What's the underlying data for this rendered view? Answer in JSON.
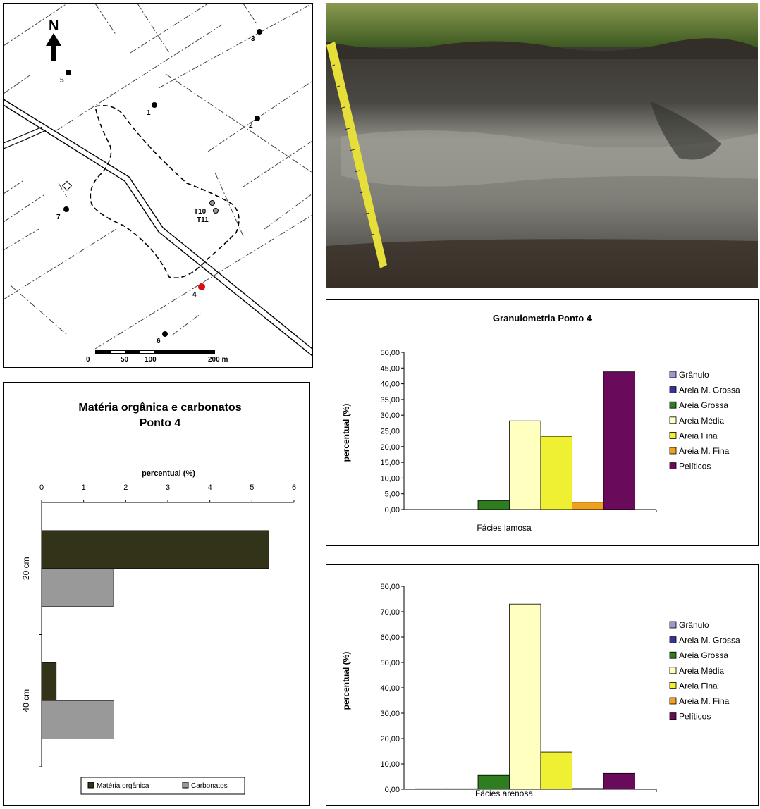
{
  "map": {
    "north_label": "N",
    "points": [
      "1",
      "2",
      "3",
      "4",
      "5",
      "6",
      "7"
    ],
    "trench_labels": [
      "T10",
      "T11"
    ],
    "scale_labels": [
      "0",
      "50",
      "100",
      "200 m"
    ]
  },
  "organic_chart": {
    "title_line1": "Matéria orgânica e carbonatos",
    "title_line2": "Ponto 4",
    "axis_label": "percentual (%)",
    "legend_organic": "Matéria orgânica",
    "legend_carbonate": "Carbonatos"
  },
  "gran1": {
    "title": "Granulometria Ponto 4",
    "ylabel": "percentual (%)",
    "category": "Fácies lamosa"
  },
  "gran2": {
    "ylabel": "percentual (%)",
    "category": "Fácies arenosa"
  },
  "colors": {
    "organic": "#333319",
    "carbonate": "#999999",
    "Grânulo": "#9999cc",
    "Areia M. Grossa": "#333399",
    "Areia Grossa": "#2e7d1e",
    "Areia Média": "#ffffc0",
    "Areia Fina": "#f0f032",
    "Areia M. Fina": "#f0a020",
    "Pelíticos": "#6a0a5a"
  },
  "chart_data": [
    {
      "type": "bar",
      "orientation": "horizontal",
      "title": "Matéria orgânica e carbonatos Ponto 4",
      "xlabel": "percentual (%)",
      "xlim": [
        0,
        6
      ],
      "xticks": [
        "0",
        "1",
        "2",
        "3",
        "4",
        "5",
        "6"
      ],
      "categories": [
        "20 cm",
        "40 cm"
      ],
      "series": [
        {
          "name": "Matéria orgânica",
          "values": [
            5.4,
            0.35
          ]
        },
        {
          "name": "Carbonatos",
          "values": [
            1.7,
            1.72
          ]
        }
      ],
      "legend": "bottom"
    },
    {
      "type": "bar",
      "title": "Granulometria Ponto 4",
      "ylabel": "percentual (%)",
      "ylim": [
        0,
        50
      ],
      "yticks": [
        "50,00",
        "45,00",
        "40,00",
        "35,00",
        "30,00",
        "25,00",
        "20,00",
        "15,00",
        "10,00",
        "5,00",
        "0,00"
      ],
      "categories": [
        "Fácies lamosa"
      ],
      "series": [
        {
          "name": "Grânulo",
          "values": [
            0.0
          ]
        },
        {
          "name": "Areia M. Grossa",
          "values": [
            0.0
          ]
        },
        {
          "name": "Areia Grossa",
          "values": [
            2.8
          ]
        },
        {
          "name": "Areia Média",
          "values": [
            28.2
          ]
        },
        {
          "name": "Areia Fina",
          "values": [
            23.3
          ]
        },
        {
          "name": "Areia M. Fina",
          "values": [
            2.3
          ]
        },
        {
          "name": "Pelíticos",
          "values": [
            43.8
          ]
        }
      ],
      "legend": "right"
    },
    {
      "type": "bar",
      "ylabel": "percentual (%)",
      "ylim": [
        0,
        80
      ],
      "yticks": [
        "80,00",
        "70,00",
        "60,00",
        "50,00",
        "40,00",
        "30,00",
        "20,00",
        "10,00",
        "0,00"
      ],
      "categories": [
        "Fácies arenosa"
      ],
      "series": [
        {
          "name": "Grânulo",
          "values": [
            0.2
          ]
        },
        {
          "name": "Areia M. Grossa",
          "values": [
            0.2
          ]
        },
        {
          "name": "Areia Grossa",
          "values": [
            5.5
          ]
        },
        {
          "name": "Areia Média",
          "values": [
            73.0
          ]
        },
        {
          "name": "Areia Fina",
          "values": [
            14.7
          ]
        },
        {
          "name": "Areia M. Fina",
          "values": [
            0.3
          ]
        },
        {
          "name": "Pelíticos",
          "values": [
            6.3
          ]
        }
      ],
      "legend": "right"
    }
  ]
}
